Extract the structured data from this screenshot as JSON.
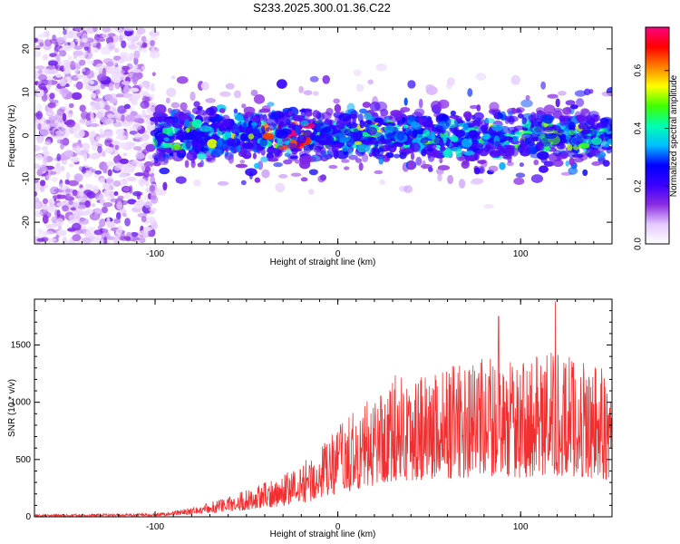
{
  "title": "S233.2025.300.01.36.C22",
  "chart_data": [
    {
      "type": "heatmap",
      "xlabel": "Height of straight line (km)",
      "ylabel": "Frequency (Hz)",
      "xlim": [
        -166,
        150
      ],
      "ylim": [
        -25,
        25
      ],
      "xticks": [
        -100,
        0,
        100
      ],
      "yticks": [
        -20,
        -10,
        0,
        10,
        20
      ],
      "colorbar": {
        "label": "Normalized spectral amplitude",
        "range": [
          0,
          0.75
        ],
        "ticks": [
          0.0,
          0.2,
          0.4,
          0.6
        ],
        "colors": [
          "#ffffff",
          "#e4c8ff",
          "#8a2be2",
          "#3a00ff",
          "#0000ff",
          "#00bfff",
          "#00ffb0",
          "#40ff00",
          "#ffff00",
          "#ff8000",
          "#ff0000",
          "#ff0080"
        ]
      },
      "description_regions": {
        "noise_region_x": [
          -166,
          -100
        ],
        "ridge_x": [
          -100,
          150
        ],
        "ridge_center_freq": 0,
        "peak_amplitude_near_x": -28
      },
      "grid": false
    },
    {
      "type": "line",
      "xlabel": "Height of straight line (km)",
      "ylabel": "SNR (10 * v/v)",
      "xlim": [
        -166,
        150
      ],
      "ylim": [
        0,
        1900
      ],
      "xticks": [
        -100,
        0,
        100
      ],
      "yticks": [
        0,
        500,
        1000,
        1500
      ],
      "color": "#f03030",
      "envelope": {
        "x": [
          -166,
          -100,
          -80,
          -60,
          -40,
          -25,
          -10,
          0,
          15,
          30,
          50,
          70,
          85,
          100,
          115,
          130,
          150
        ],
        "y": [
          20,
          30,
          80,
          180,
          300,
          420,
          600,
          800,
          1000,
          1250,
          1300,
          1350,
          1400,
          1350,
          1450,
          1400,
          1300
        ]
      },
      "peaks": [
        {
          "x": 88,
          "y": 1750
        },
        {
          "x": 119,
          "y": 1880
        }
      ],
      "grid": false
    }
  ]
}
